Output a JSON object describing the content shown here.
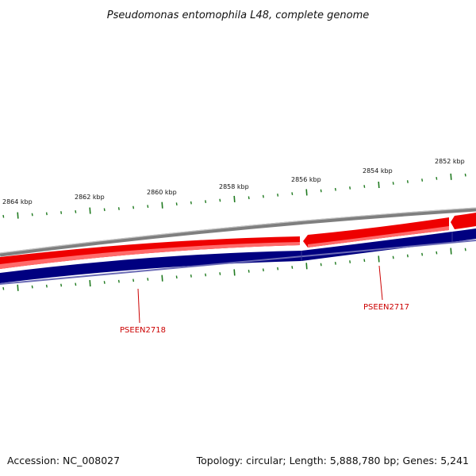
{
  "title": "Pseudomonas entomophila L48, complete genome",
  "footer": {
    "accession": "Accession: NC_008027",
    "topology": "Topology: circular; Length: 5,888,780 bp; Genes: 5,241"
  },
  "scale": {
    "unit": "kbp",
    "labels": [
      "2864 kbp",
      "2862 kbp",
      "2860 kbp",
      "2858 kbp",
      "2856 kbp",
      "2854 kbp",
      "2852 kbp"
    ]
  },
  "genes": [
    {
      "name": "PSEEN2718"
    },
    {
      "name": "PSEEN2717"
    }
  ],
  "colors": {
    "backbone": "#888888",
    "forward_strand": "#ee0000",
    "reverse_strand": "#000080",
    "ticks": "#1f7a1f",
    "gene_label": "#cc0000"
  }
}
